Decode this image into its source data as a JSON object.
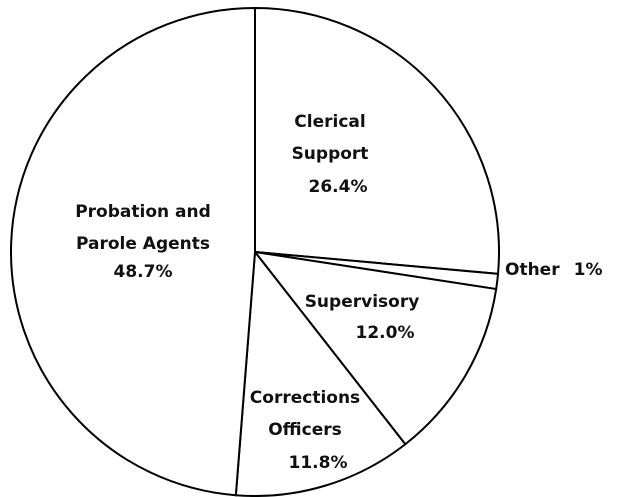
{
  "chart_data": {
    "type": "pie",
    "categories": [
      "Clerical\nSupport",
      "Other",
      "Supervisory",
      "Corrections\nOfficers",
      "Probation and\nParole Agents"
    ],
    "values": [
      26.4,
      1,
      12.0,
      11.8,
      48.7
    ],
    "value_labels": [
      "26.4%",
      "1%",
      "12.0%",
      "11.8%",
      "48.7%"
    ],
    "color": "#ffffff",
    "edge_color": "#000000"
  }
}
